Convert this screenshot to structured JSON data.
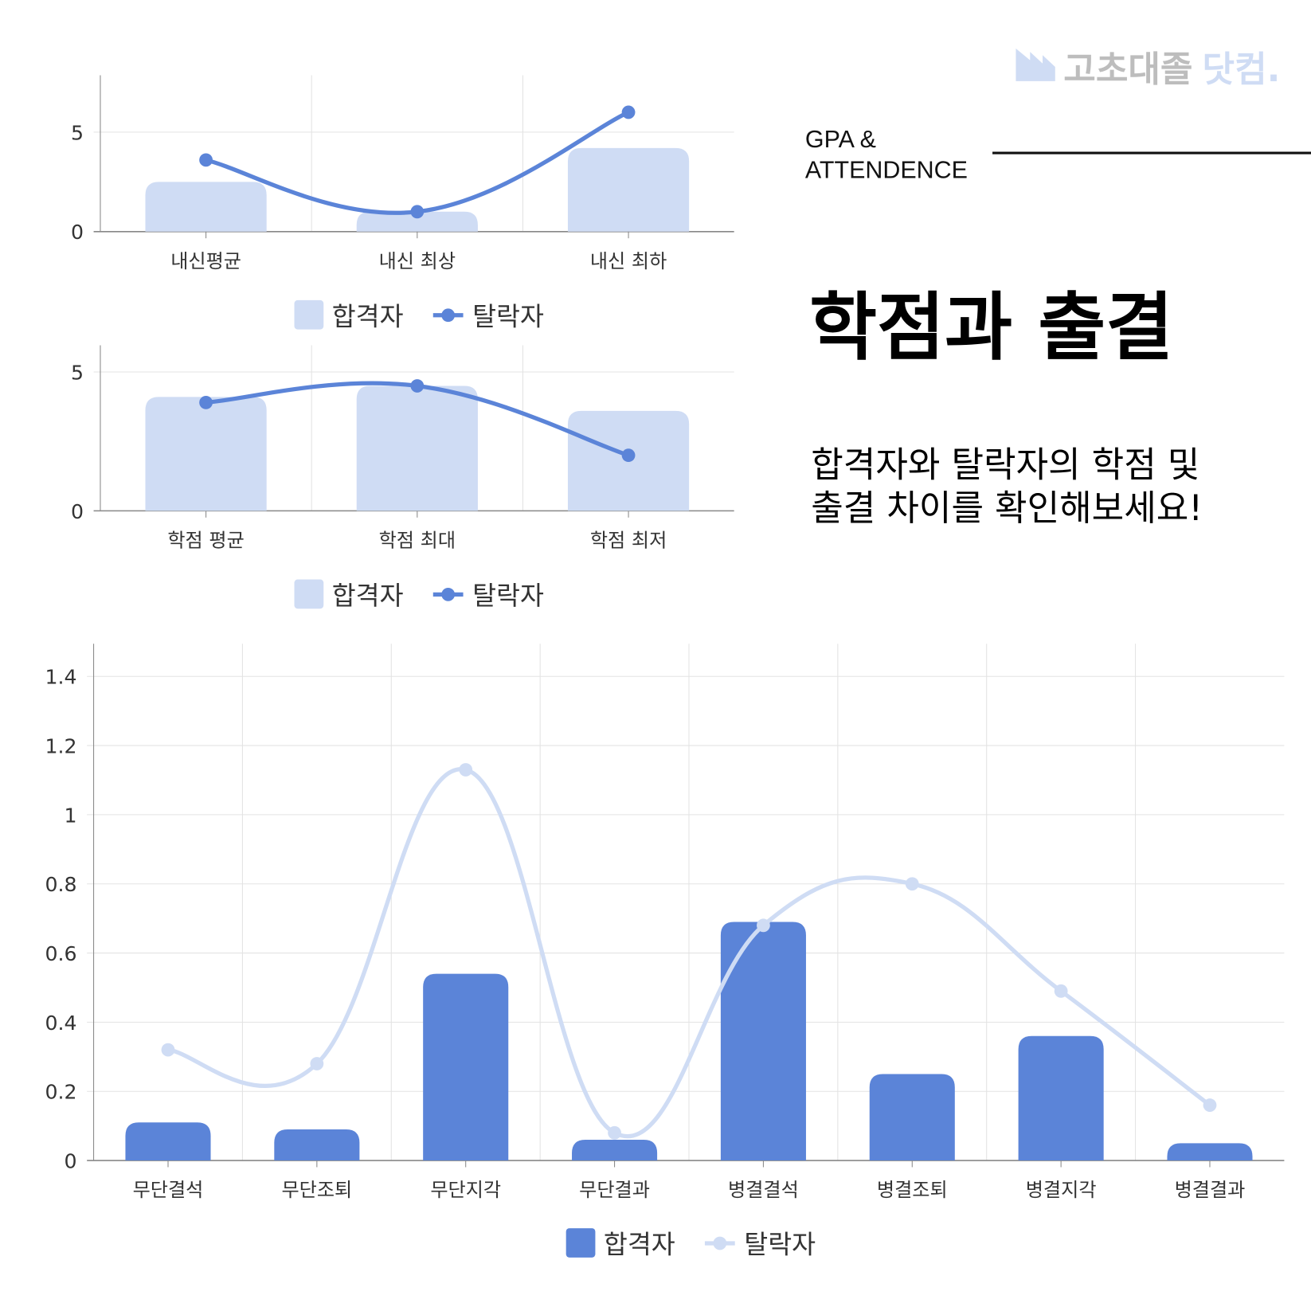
{
  "logo": {
    "text_gray": "고초대졸",
    "text_blue": "닷컴."
  },
  "header": {
    "eyebrow_line1": "GPA &",
    "eyebrow_line2": "ATTENDENCE",
    "title": "학점과 출결",
    "subtitle_line1": "합격자와 탈락자의 학점 및",
    "subtitle_line2": "출결 차이를 확인해보세요!"
  },
  "colors": {
    "bar_light": "#cfdcf4",
    "line_dark": "#5b84d8",
    "bar_dark": "#5b84d8",
    "line_light": "#cfdcf4",
    "grid": "#e3e3e3",
    "axis": "#888888"
  },
  "chart_data": [
    {
      "type": "bar",
      "categories": [
        "내신평균",
        "내신 최상",
        "내신 최하"
      ],
      "ylim": [
        0,
        7.8
      ],
      "yticks": [
        "0",
        "5"
      ],
      "grid": true,
      "legend": "bottom",
      "series": [
        {
          "name": "합격자",
          "kind": "bar",
          "values": [
            2.5,
            1.0,
            4.2
          ]
        },
        {
          "name": "탈락자",
          "kind": "line",
          "values": [
            3.6,
            1.0,
            6.0
          ]
        }
      ]
    },
    {
      "type": "bar",
      "categories": [
        "학점 평균",
        "학점 최대",
        "학점 최저"
      ],
      "ylim": [
        0,
        6
      ],
      "yticks": [
        "0",
        "5"
      ],
      "grid": true,
      "legend": "bottom",
      "series": [
        {
          "name": "합격자",
          "kind": "bar",
          "values": [
            4.1,
            4.5,
            3.6
          ]
        },
        {
          "name": "탈락자",
          "kind": "line",
          "values": [
            3.9,
            4.5,
            2.0
          ]
        }
      ]
    },
    {
      "type": "bar",
      "categories": [
        "무단결석",
        "무단조퇴",
        "무단지각",
        "무단결과",
        "병결결석",
        "병결조퇴",
        "병결지각",
        "병결결과"
      ],
      "ylim": [
        0,
        1.5
      ],
      "yticks": [
        "0",
        "0.2",
        "0.4",
        "0.6",
        "0.8",
        "1",
        "1.2",
        "1.4"
      ],
      "grid": true,
      "legend": "bottom",
      "series": [
        {
          "name": "합격자",
          "kind": "bar",
          "values": [
            0.11,
            0.09,
            0.54,
            0.06,
            0.69,
            0.25,
            0.36,
            0.05
          ]
        },
        {
          "name": "탈락자",
          "kind": "line",
          "values": [
            0.32,
            0.28,
            1.13,
            0.08,
            0.68,
            0.8,
            0.49,
            0.16
          ]
        }
      ]
    }
  ]
}
